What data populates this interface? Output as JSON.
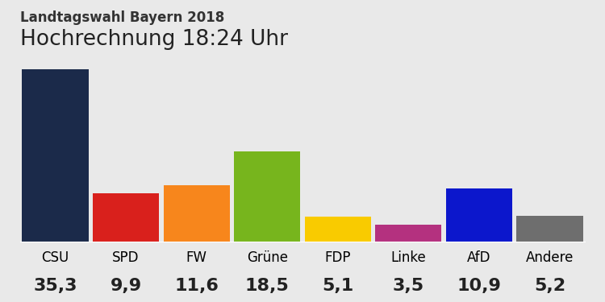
{
  "chart_data": {
    "type": "bar",
    "title": "Landtagswahl Bayern 2018",
    "subtitle": "Hochrechnung 18:24 Uhr",
    "categories": [
      "CSU",
      "SPD",
      "FW",
      "Grüne",
      "FDP",
      "Linke",
      "AfD",
      "Andere"
    ],
    "values": [
      35.3,
      9.9,
      11.6,
      18.5,
      5.1,
      3.5,
      10.9,
      5.2
    ],
    "value_labels": [
      "35,3",
      "9,9",
      "11,6",
      "18,5",
      "5,1",
      "3,5",
      "10,9",
      "5,2"
    ],
    "colors": [
      "#1b2a4a",
      "#d9201c",
      "#f7861c",
      "#77b51d",
      "#f9cb00",
      "#b4317f",
      "#0c17cc",
      "#6e6e6e"
    ],
    "data_labels": true,
    "tick_labels": "x",
    "grid": false
  }
}
